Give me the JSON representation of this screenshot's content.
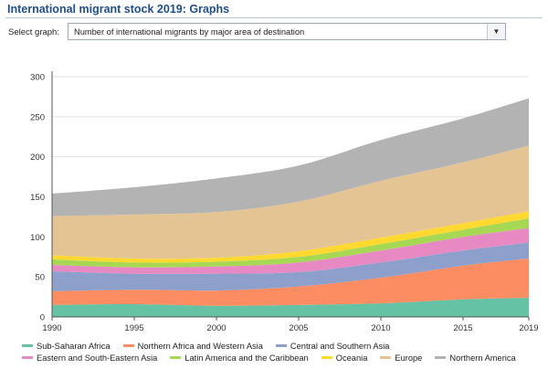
{
  "header": {
    "title": "International migrant stock 2019: Graphs"
  },
  "selector": {
    "label": "Select graph:",
    "selected": "Number of international migrants by major area of destination"
  },
  "icons": {
    "dropdown": "chevron-down-icon"
  },
  "chart_data": {
    "type": "area",
    "stacked": true,
    "title": "",
    "xlabel": "",
    "ylabel": "",
    "x": [
      1990,
      1995,
      2000,
      2005,
      2010,
      2015,
      2019
    ],
    "xticks": [
      "1990",
      "1995",
      "2000",
      "2005",
      "2010",
      "2015",
      "2019"
    ],
    "yticks": [
      "0",
      "50",
      "100",
      "150",
      "200",
      "250",
      "300"
    ],
    "ylim": [
      0,
      300
    ],
    "grid": true,
    "legend_position": "bottom",
    "series": [
      {
        "name": "Sub-Saharan Africa",
        "color": "#66c2a5",
        "values": [
          15,
          16,
          14,
          15,
          17,
          22,
          24
        ]
      },
      {
        "name": "Northern Africa and Western Asia",
        "color": "#fc8d62",
        "values": [
          17,
          18,
          19,
          23,
          32,
          42,
          49
        ]
      },
      {
        "name": "Central and Southern Asia",
        "color": "#8da0cb",
        "values": [
          25,
          20,
          21,
          18,
          19,
          19,
          20
        ]
      },
      {
        "name": "Eastern and South-Eastern Asia",
        "color": "#e78ac3",
        "values": [
          8,
          8,
          9,
          12,
          15,
          17,
          18
        ]
      },
      {
        "name": "Latin America and the Caribbean",
        "color": "#a6d854",
        "values": [
          7,
          6,
          6,
          7,
          8,
          9,
          12
        ]
      },
      {
        "name": "Oceania",
        "color": "#ffd92f",
        "values": [
          5,
          5,
          5,
          7,
          8,
          8,
          9
        ]
      },
      {
        "name": "Europe",
        "color": "#e5c494",
        "values": [
          49,
          55,
          57,
          62,
          71,
          76,
          82
        ]
      },
      {
        "name": "Northern America",
        "color": "#b3b3b3",
        "values": [
          28,
          34,
          42,
          45,
          51,
          55,
          59
        ]
      }
    ]
  }
}
